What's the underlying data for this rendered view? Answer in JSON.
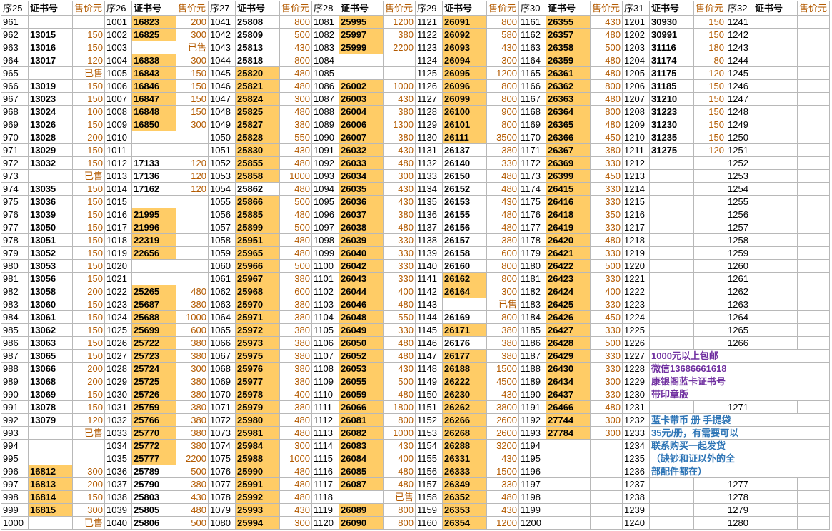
{
  "headers": {
    "seq": [
      "序25",
      "序26",
      "序27",
      "序28",
      "序29",
      "序30",
      "序31",
      "序32"
    ],
    "cert": "证书号",
    "price": "售价元"
  },
  "sold_label": "已售",
  "highlight_color": "#ffcc66",
  "price_color": "#b35a00",
  "notes": [
    {
      "text": "1000元以上包邮",
      "color": "#7030a0",
      "row": 26
    },
    {
      "text": "微信13686661618",
      "color": "#7030a0",
      "row": 27
    },
    {
      "text": "康银阁蓝卡证书号",
      "color": "#7030a0",
      "row": 28
    },
    {
      "text": "带印章版",
      "color": "#7030a0",
      "row": 29
    },
    {
      "text": "蓝卡带币 册 手提袋",
      "color": "#2e75b6",
      "row": 31
    },
    {
      "text": "35元/册，有需要可以",
      "color": "#2e75b6",
      "row": 32
    },
    {
      "text": "联系购买一起发货",
      "color": "#2e75b6",
      "row": 33
    },
    {
      "text": "（缺钞和证以外的全",
      "color": "#2e75b6",
      "row": 34
    },
    {
      "text": "部配件都在）",
      "color": "#2e75b6",
      "row": 35
    }
  ],
  "blocks": [
    {
      "start": 961,
      "rows": [
        [
          "",
          "",
          ""
        ],
        [
          "13015",
          "",
          150
        ],
        [
          "13016",
          "",
          150
        ],
        [
          "13017",
          "",
          120
        ],
        [
          "",
          "",
          "已售"
        ],
        [
          "13019",
          "",
          150
        ],
        [
          "13023",
          "",
          150
        ],
        [
          "13024",
          "",
          100
        ],
        [
          "13026",
          "",
          150
        ],
        [
          "13028",
          "",
          200
        ],
        [
          "13029",
          "",
          150
        ],
        [
          "13032",
          "",
          150
        ],
        [
          "",
          "",
          "已售"
        ],
        [
          "13035",
          "",
          150
        ],
        [
          "13036",
          "",
          150
        ],
        [
          "13039",
          "",
          150
        ],
        [
          "13050",
          "",
          150
        ],
        [
          "13051",
          "",
          150
        ],
        [
          "13052",
          "",
          150
        ],
        [
          "13053",
          "",
          150
        ],
        [
          "13056",
          "",
          150
        ],
        [
          "13058",
          "",
          200
        ],
        [
          "13060",
          "",
          150
        ],
        [
          "13061",
          "",
          150
        ],
        [
          "13062",
          "",
          150
        ],
        [
          "13063",
          "",
          150
        ],
        [
          "13065",
          "",
          150
        ],
        [
          "13066",
          "",
          200
        ],
        [
          "13068",
          "",
          200
        ],
        [
          "13069",
          "",
          150
        ],
        [
          "13078",
          "",
          150
        ],
        [
          "13079",
          "",
          120
        ],
        [
          "",
          "",
          "已售"
        ],
        [
          "",
          "",
          ""
        ],
        [
          "",
          "",
          ""
        ],
        [
          "16812",
          "y",
          300
        ],
        [
          "16813",
          "y",
          200
        ],
        [
          "16814",
          "y",
          150
        ],
        [
          "16815",
          "y",
          300
        ],
        [
          "",
          "",
          "已售"
        ]
      ]
    },
    {
      "start": 1001,
      "rows": [
        [
          "16823",
          "y",
          200
        ],
        [
          "16825",
          "y",
          300
        ],
        [
          "",
          "",
          "已售"
        ],
        [
          "16838",
          "y",
          300
        ],
        [
          "16843",
          "y",
          150
        ],
        [
          "16846",
          "y",
          150
        ],
        [
          "16847",
          "y",
          150
        ],
        [
          "16848",
          "y",
          150
        ],
        [
          "16850",
          "y",
          300
        ],
        [
          "",
          "",
          ""
        ],
        [
          "",
          "",
          ""
        ],
        [
          "17133",
          "",
          120
        ],
        [
          "17136",
          "",
          120
        ],
        [
          "17162",
          "",
          120
        ],
        [
          "",
          "",
          ""
        ],
        [
          "21995",
          "y",
          ""
        ],
        [
          "21996",
          "y",
          ""
        ],
        [
          "22319",
          "y",
          ""
        ],
        [
          "22656",
          "y",
          ""
        ],
        [
          "",
          "",
          ""
        ],
        [
          "",
          "",
          ""
        ],
        [
          "25265",
          "y",
          480
        ],
        [
          "25687",
          "y",
          380
        ],
        [
          "25688",
          "y",
          1000
        ],
        [
          "25699",
          "y",
          600
        ],
        [
          "25722",
          "y",
          380
        ],
        [
          "25723",
          "y",
          380
        ],
        [
          "25724",
          "y",
          300
        ],
        [
          "25725",
          "y",
          380
        ],
        [
          "25726",
          "y",
          380
        ],
        [
          "25759",
          "y",
          380
        ],
        [
          "25766",
          "y",
          380
        ],
        [
          "25770",
          "y",
          380
        ],
        [
          "25772",
          "y",
          380
        ],
        [
          "25777",
          "y",
          2200
        ],
        [
          "25789",
          "",
          500
        ],
        [
          "25790",
          "",
          380
        ],
        [
          "25803",
          "",
          430
        ],
        [
          "25805",
          "",
          480
        ],
        [
          "25806",
          "",
          500
        ]
      ]
    },
    {
      "start": 1041,
      "rows": [
        [
          "25808",
          "",
          800
        ],
        [
          "25809",
          "",
          500
        ],
        [
          "25813",
          "",
          430
        ],
        [
          "25818",
          "",
          800
        ],
        [
          "25820",
          "y",
          480
        ],
        [
          "25821",
          "y",
          480
        ],
        [
          "25824",
          "y",
          300
        ],
        [
          "25825",
          "y",
          480
        ],
        [
          "25827",
          "y",
          380
        ],
        [
          "25828",
          "y",
          550
        ],
        [
          "25830",
          "y",
          430
        ],
        [
          "25855",
          "y",
          480
        ],
        [
          "25858",
          "y",
          1000
        ],
        [
          "25862",
          "",
          480
        ],
        [
          "25866",
          "y",
          500
        ],
        [
          "25885",
          "y",
          480
        ],
        [
          "25899",
          "y",
          500
        ],
        [
          "25951",
          "y",
          480
        ],
        [
          "25965",
          "y",
          480
        ],
        [
          "25966",
          "y",
          500
        ],
        [
          "25967",
          "y",
          380
        ],
        [
          "25968",
          "y",
          600
        ],
        [
          "25970",
          "y",
          380
        ],
        [
          "25971",
          "y",
          380
        ],
        [
          "25972",
          "y",
          380
        ],
        [
          "25973",
          "y",
          380
        ],
        [
          "25975",
          "y",
          380
        ],
        [
          "25976",
          "y",
          380
        ],
        [
          "25977",
          "y",
          380
        ],
        [
          "25978",
          "y",
          400
        ],
        [
          "25979",
          "y",
          380
        ],
        [
          "25980",
          "y",
          480
        ],
        [
          "25981",
          "y",
          480
        ],
        [
          "25984",
          "y",
          300
        ],
        [
          "25988",
          "y",
          1000
        ],
        [
          "25990",
          "y",
          480
        ],
        [
          "25991",
          "y",
          480
        ],
        [
          "25992",
          "y",
          480
        ],
        [
          "25993",
          "y",
          430
        ],
        [
          "25994",
          "y",
          300
        ]
      ]
    },
    {
      "start": 1081,
      "rows": [
        [
          "25995",
          "y",
          1200
        ],
        [
          "25997",
          "y",
          380
        ],
        [
          "25999",
          "y",
          2200
        ],
        [
          "",
          "",
          ""
        ],
        [
          "",
          "",
          ""
        ],
        [
          "26002",
          "y",
          1000
        ],
        [
          "26003",
          "y",
          430
        ],
        [
          "26004",
          "y",
          380
        ],
        [
          "26006",
          "y",
          1300
        ],
        [
          "26007",
          "y",
          380
        ],
        [
          "26032",
          "y",
          430
        ],
        [
          "26033",
          "y",
          480
        ],
        [
          "26034",
          "y",
          300
        ],
        [
          "26035",
          "y",
          430
        ],
        [
          "26036",
          "y",
          430
        ],
        [
          "26037",
          "y",
          380
        ],
        [
          "26038",
          "y",
          480
        ],
        [
          "26039",
          "y",
          330
        ],
        [
          "26040",
          "y",
          330
        ],
        [
          "26042",
          "y",
          330
        ],
        [
          "26043",
          "y",
          330
        ],
        [
          "26044",
          "y",
          400
        ],
        [
          "26046",
          "y",
          480
        ],
        [
          "26048",
          "y",
          550
        ],
        [
          "26049",
          "y",
          330
        ],
        [
          "26050",
          "y",
          480
        ],
        [
          "26052",
          "y",
          480
        ],
        [
          "26053",
          "y",
          430
        ],
        [
          "26055",
          "y",
          500
        ],
        [
          "26059",
          "y",
          480
        ],
        [
          "26066",
          "y",
          1800
        ],
        [
          "26081",
          "y",
          800
        ],
        [
          "26082",
          "y",
          1000
        ],
        [
          "26083",
          "y",
          430
        ],
        [
          "26084",
          "y",
          400
        ],
        [
          "26085",
          "y",
          480
        ],
        [
          "26087",
          "y",
          480
        ],
        [
          "",
          "",
          "已售"
        ],
        [
          "26089",
          "y",
          800
        ],
        [
          "26090",
          "y",
          800
        ]
      ]
    },
    {
      "start": 1121,
      "rows": [
        [
          "26091",
          "y",
          800
        ],
        [
          "26092",
          "y",
          580
        ],
        [
          "26093",
          "y",
          430
        ],
        [
          "26094",
          "y",
          300
        ],
        [
          "26095",
          "y",
          1200
        ],
        [
          "26096",
          "y",
          800
        ],
        [
          "26099",
          "y",
          800
        ],
        [
          "26100",
          "y",
          900
        ],
        [
          "26101",
          "y",
          800
        ],
        [
          "26111",
          "y",
          3500
        ],
        [
          "26137",
          "",
          380
        ],
        [
          "26140",
          "",
          330
        ],
        [
          "26150",
          "",
          480
        ],
        [
          "26152",
          "",
          480
        ],
        [
          "26153",
          "",
          430
        ],
        [
          "26155",
          "",
          480
        ],
        [
          "26156",
          "",
          480
        ],
        [
          "26157",
          "",
          380
        ],
        [
          "26158",
          "",
          600
        ],
        [
          "26160",
          "",
          800
        ],
        [
          "26162",
          "y",
          800
        ],
        [
          "26164",
          "y",
          300
        ],
        [
          "",
          "",
          "已售"
        ],
        [
          "26169",
          "",
          800
        ],
        [
          "26171",
          "y",
          380
        ],
        [
          "26176",
          "",
          380
        ],
        [
          "26177",
          "y",
          380
        ],
        [
          "26188",
          "y",
          1500
        ],
        [
          "26222",
          "y",
          4500
        ],
        [
          "26230",
          "y",
          430
        ],
        [
          "26262",
          "y",
          3800
        ],
        [
          "26266",
          "y",
          2600
        ],
        [
          "26268",
          "y",
          2600
        ],
        [
          "26288",
          "y",
          3200
        ],
        [
          "26331",
          "y",
          430
        ],
        [
          "26333",
          "y",
          1500
        ],
        [
          "26349",
          "y",
          330
        ],
        [
          "26352",
          "y",
          480
        ],
        [
          "26353",
          "y",
          430
        ],
        [
          "26354",
          "y",
          1200
        ]
      ]
    },
    {
      "start": 1161,
      "rows": [
        [
          "26355",
          "y",
          430
        ],
        [
          "26357",
          "y",
          480
        ],
        [
          "26358",
          "y",
          500
        ],
        [
          "26359",
          "y",
          480
        ],
        [
          "26361",
          "y",
          480
        ],
        [
          "26362",
          "y",
          800
        ],
        [
          "26363",
          "y",
          480
        ],
        [
          "26364",
          "y",
          800
        ],
        [
          "26365",
          "y",
          480
        ],
        [
          "26366",
          "y",
          450
        ],
        [
          "26367",
          "y",
          380
        ],
        [
          "26369",
          "y",
          330
        ],
        [
          "26399",
          "y",
          450
        ],
        [
          "26415",
          "y",
          330
        ],
        [
          "26416",
          "y",
          330
        ],
        [
          "26418",
          "y",
          350
        ],
        [
          "26419",
          "y",
          330
        ],
        [
          "26420",
          "y",
          480
        ],
        [
          "26421",
          "y",
          330
        ],
        [
          "26422",
          "y",
          500
        ],
        [
          "26423",
          "y",
          330
        ],
        [
          "26424",
          "y",
          400
        ],
        [
          "26425",
          "y",
          330
        ],
        [
          "26426",
          "y",
          450
        ],
        [
          "26427",
          "y",
          330
        ],
        [
          "26428",
          "y",
          500
        ],
        [
          "26429",
          "y",
          330
        ],
        [
          "26430",
          "y",
          330
        ],
        [
          "26434",
          "y",
          300
        ],
        [
          "26437",
          "y",
          330
        ],
        [
          "26466",
          "y",
          480
        ],
        [
          "27744",
          "y",
          300
        ],
        [
          "27784",
          "y",
          300
        ],
        [
          "",
          "",
          ""
        ],
        [
          "",
          "",
          ""
        ],
        [
          "",
          "",
          ""
        ],
        [
          "",
          "",
          ""
        ],
        [
          "",
          "",
          ""
        ],
        [
          "",
          "",
          ""
        ],
        [
          "",
          "",
          ""
        ]
      ]
    },
    {
      "start": 1201,
      "rows": [
        [
          "30930",
          "",
          150
        ],
        [
          "30991",
          "",
          150
        ],
        [
          "31116",
          "",
          180
        ],
        [
          "31174",
          "",
          80
        ],
        [
          "31175",
          "",
          120
        ],
        [
          "31185",
          "",
          150
        ],
        [
          "31210",
          "",
          150
        ],
        [
          "31223",
          "",
          150
        ],
        [
          "31230",
          "",
          150
        ],
        [
          "31235",
          "",
          150
        ],
        [
          "31275",
          "",
          120
        ]
      ]
    },
    {
      "start": 1241,
      "rows": []
    }
  ]
}
